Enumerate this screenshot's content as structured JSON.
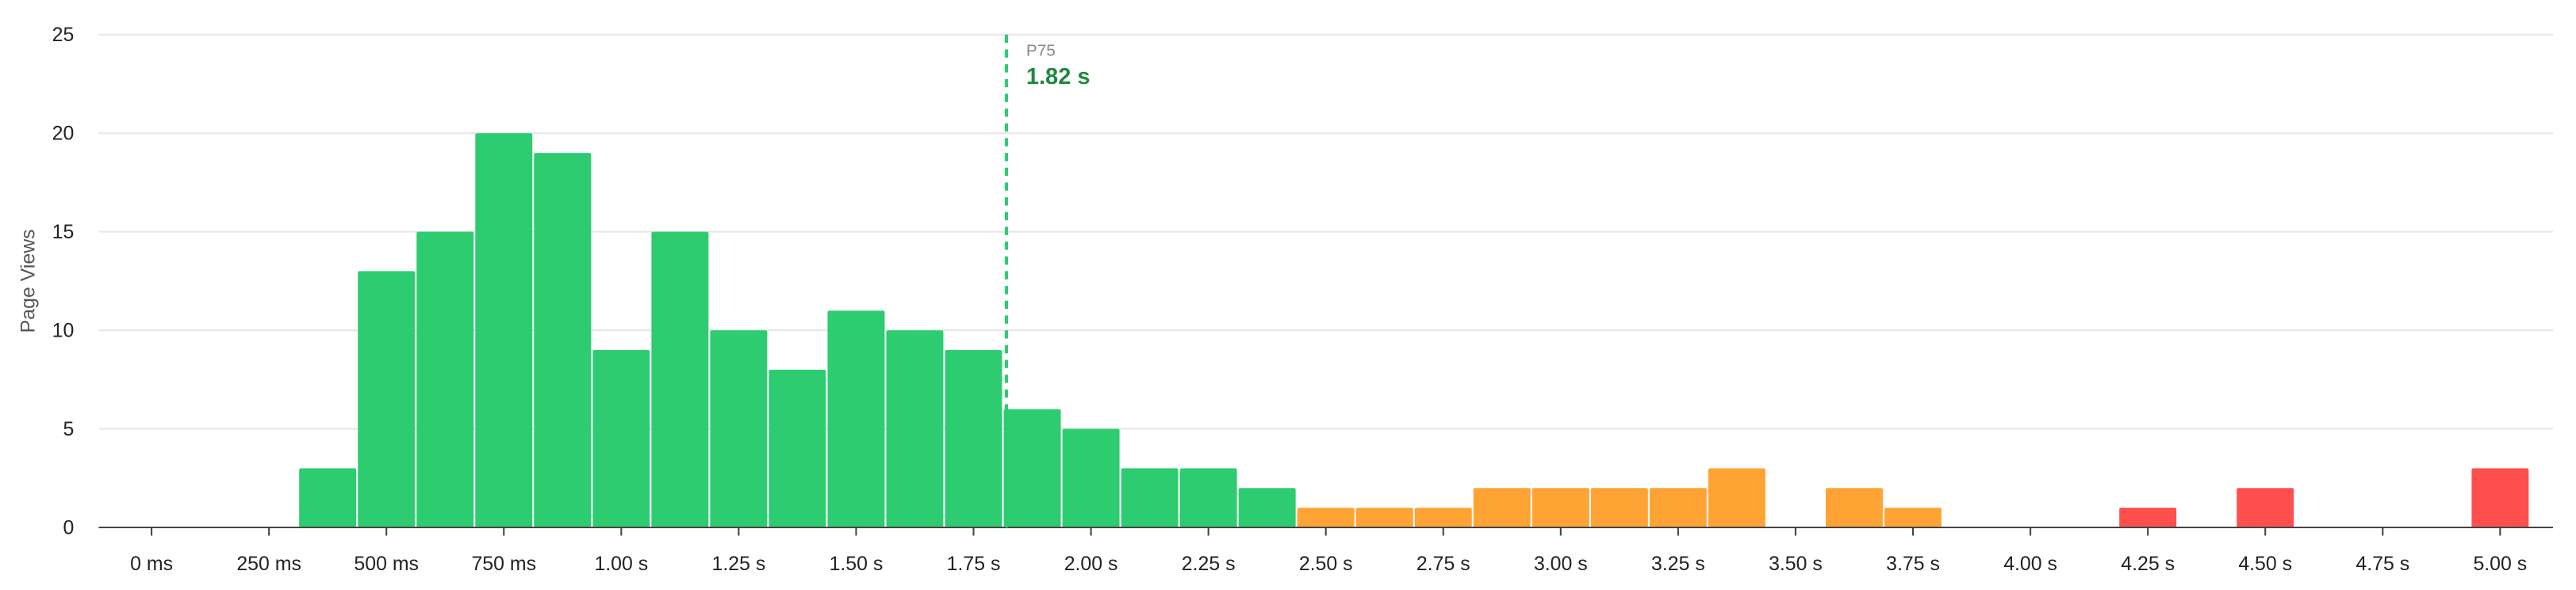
{
  "chart_data": {
    "type": "histogram",
    "ylabel": "Page Views",
    "bins": [
      312.5,
      437.5,
      562.5,
      687.5,
      812.5,
      937.5,
      1062.5,
      1187.5,
      1312.5,
      1437.5,
      1562.5,
      1687.5,
      1812.5,
      1937.5,
      2062.5,
      2187.5,
      2312.5,
      2437.5,
      2562.5,
      2687.5,
      2812.5,
      2937.5,
      3062.5,
      3187.5,
      3312.5,
      3437.5,
      3562.5,
      3687.5,
      3812.5,
      3937.5,
      4062.5,
      4187.5,
      4312.5,
      4437.5,
      4562.5,
      4687.5,
      4812.5,
      4937.5,
      5062.5
    ],
    "values": [
      3,
      13,
      15,
      20,
      19,
      9,
      15,
      10,
      8,
      11,
      10,
      9,
      6,
      5,
      3,
      3,
      2,
      1,
      1,
      1,
      2,
      2,
      2,
      2,
      3,
      0,
      2,
      1,
      0,
      0,
      0,
      1,
      0,
      2,
      0,
      0,
      0,
      3
    ],
    "colors": [
      "#2ecc71",
      "#2ecc71",
      "#2ecc71",
      "#2ecc71",
      "#2ecc71",
      "#2ecc71",
      "#2ecc71",
      "#2ecc71",
      "#2ecc71",
      "#2ecc71",
      "#2ecc71",
      "#2ecc71",
      "#2ecc71",
      "#2ecc71",
      "#2ecc71",
      "#2ecc71",
      "#2ecc71",
      "#ffa434",
      "#ffa434",
      "#ffa434",
      "#ffa434",
      "#ffa434",
      "#ffa434",
      "#ffa434",
      "#ffa434",
      "#ffa434",
      "#ffa434",
      "#ffa434",
      "#ff4f4f",
      "#ff4f4f",
      "#ff4f4f",
      "#ff4f4f",
      "#ff4f4f",
      "#ff4f4f",
      "#ff4f4f",
      "#ff4f4f",
      "#ff4f4f",
      "#ff4f4f"
    ],
    "xlim": [
      -112.5,
      5112.5
    ],
    "ylim": [
      0,
      25
    ],
    "xticks": [
      {
        "value": 0,
        "label": "0 ms"
      },
      {
        "value": 250,
        "label": "250 ms"
      },
      {
        "value": 500,
        "label": "500 ms"
      },
      {
        "value": 750,
        "label": "750 ms"
      },
      {
        "value": 1000,
        "label": "1.00 s"
      },
      {
        "value": 1250,
        "label": "1.25 s"
      },
      {
        "value": 1500,
        "label": "1.50 s"
      },
      {
        "value": 1750,
        "label": "1.75 s"
      },
      {
        "value": 2000,
        "label": "2.00 s"
      },
      {
        "value": 2250,
        "label": "2.25 s"
      },
      {
        "value": 2500,
        "label": "2.50 s"
      },
      {
        "value": 2750,
        "label": "2.75 s"
      },
      {
        "value": 3000,
        "label": "3.00 s"
      },
      {
        "value": 3250,
        "label": "3.25 s"
      },
      {
        "value": 3500,
        "label": "3.50 s"
      },
      {
        "value": 3750,
        "label": "3.75 s"
      },
      {
        "value": 4000,
        "label": "4.00 s"
      },
      {
        "value": 4250,
        "label": "4.25 s"
      },
      {
        "value": 4500,
        "label": "4.50 s"
      },
      {
        "value": 4750,
        "label": "4.75 s"
      },
      {
        "value": 5000,
        "label": "5.00 s"
      }
    ],
    "yticks": [
      0,
      5,
      10,
      15,
      20,
      25
    ],
    "grid": true,
    "marker": {
      "label": "P75",
      "value": 1820,
      "value_label": "1.82 s",
      "color": "#2ecc71",
      "text_color": "#1e8a3e"
    }
  }
}
